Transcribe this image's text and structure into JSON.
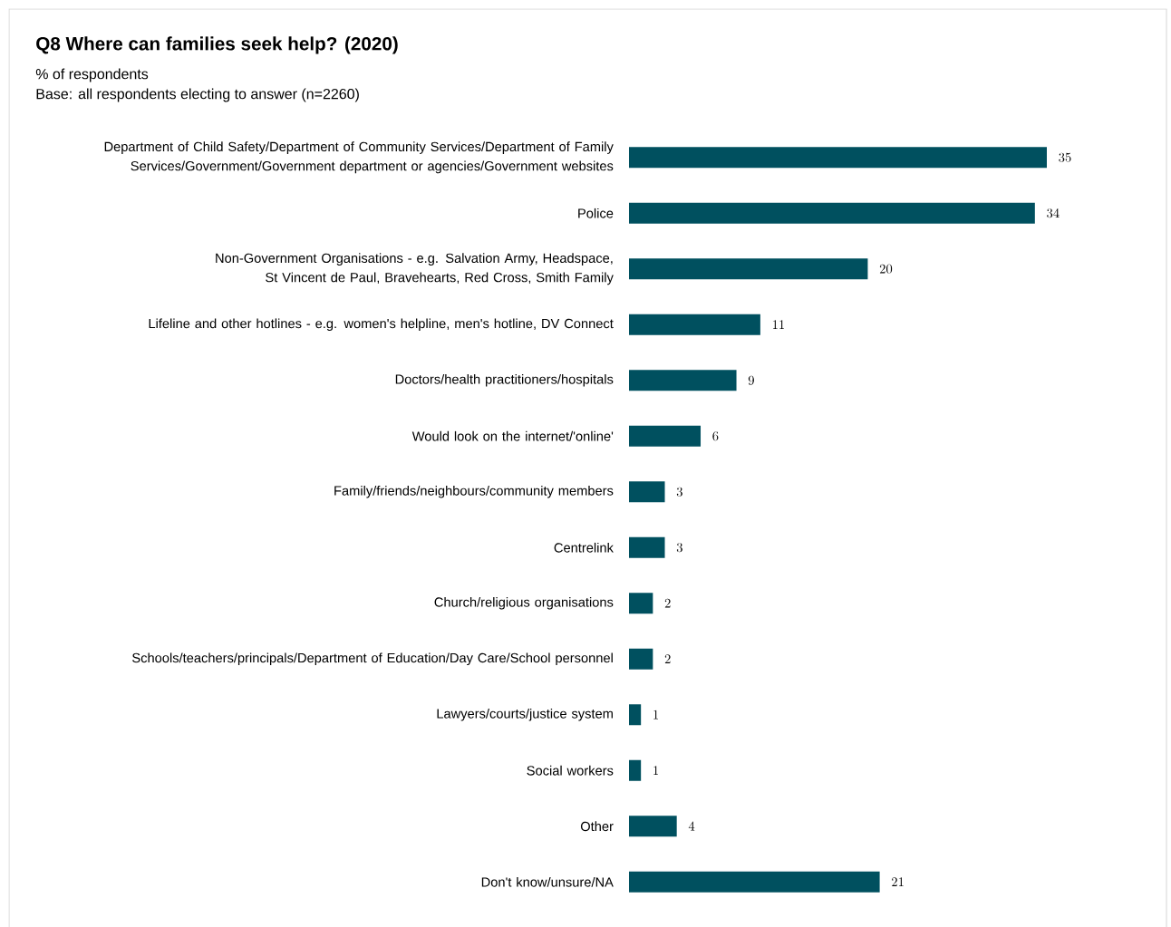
{
  "chart_data": {
    "type": "bar",
    "orientation": "horizontal",
    "title": "Q8 Where can families seek help? (2020)",
    "subtitle": "% of respondents",
    "annotations": [
      "Base: all respondents electing to answer (n=2260)"
    ],
    "categories": [
      "Department of Child Safety/Department of Community Services/Department of Family Services/Government/Government department or agencies/Government websites",
      "Police",
      "Non-Government Organisations - e.g. Salvation Army, Headspace, St Vincent de Paul, Bravehearts, Red Cross, Smith Family",
      "Lifeline and other hotlines - e.g. women's helpline, men's hotline, DV Connect",
      "Doctors/health practitioners/hospitals",
      "Would look on the internet/'online'",
      "Family/friends/neighbours/community members",
      "Centrelink",
      "Church/religious organisations",
      "Schools/teachers/principals/Department of Education/Day Care/School personnel",
      "Lawyers/courts/justice system",
      "Social workers",
      "Other",
      "Don't know/unsure/NA"
    ],
    "values": [
      35,
      34,
      20,
      11,
      9,
      6,
      3,
      3,
      2,
      2,
      1,
      1,
      4,
      21
    ],
    "color": "#00505f",
    "data_labels": true
  }
}
